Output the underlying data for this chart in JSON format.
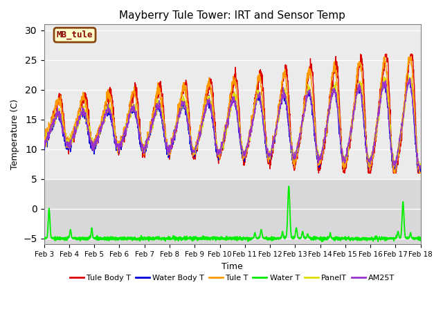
{
  "title": "Mayberry Tule Tower: IRT and Sensor Temp",
  "xlabel": "Time",
  "ylabel": "Temperature (C)",
  "xlim": [
    0,
    15
  ],
  "ylim": [
    -6,
    31
  ],
  "yticks": [
    -5,
    0,
    5,
    10,
    15,
    20,
    25,
    30
  ],
  "xtick_labels": [
    "Feb 3",
    "Feb 4",
    "Feb 5",
    "Feb 6",
    "Feb 7",
    "Feb 8",
    "Feb 9",
    "Feb 10",
    "Feb 11",
    "Feb 12",
    "Feb 13",
    "Feb 14",
    "Feb 15",
    "Feb 16",
    "Feb 17",
    "Feb 18"
  ],
  "colors": {
    "Tule Body T": "#dd0000",
    "Water Body T": "#0000dd",
    "Tule T": "#ff9900",
    "Water T": "#00ee00",
    "PanelT": "#dddd00",
    "AM25T": "#9933cc"
  },
  "legend_text": "MB_tule",
  "bg_light": "#ebebeb",
  "bg_dark": "#d8d8d8",
  "n_points": 2000,
  "period_days": 15
}
